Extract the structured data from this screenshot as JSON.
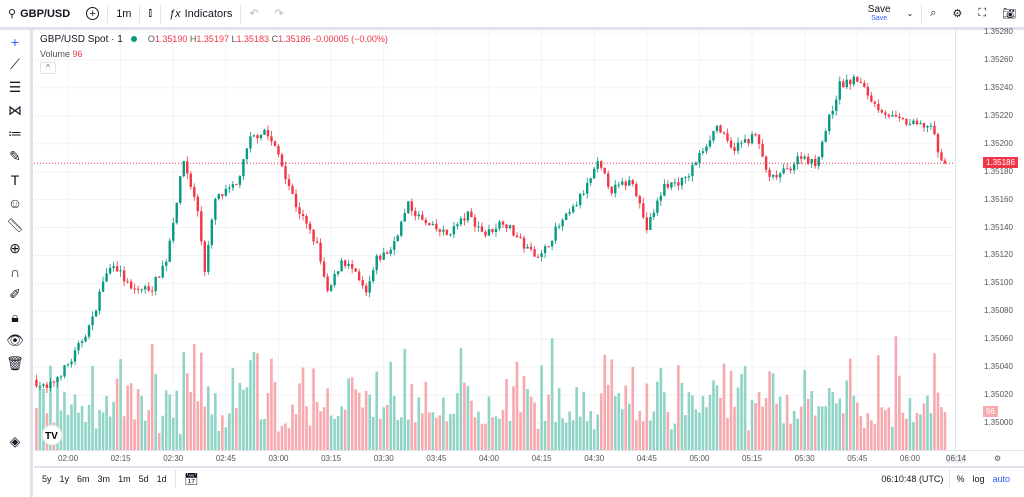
{
  "toolbar": {
    "symbol": "GBP/USD",
    "interval": "1m",
    "indicators": "Indicators",
    "save": "Save",
    "save_sub": "Save"
  },
  "legend": {
    "title": "GBP/USD Spot · 1",
    "o_label": "O",
    "o": "1.35190",
    "h_label": "H",
    "h": "1.35197",
    "l_label": "L",
    "l": "1.35183",
    "c_label": "C",
    "c": "1.35186",
    "change": "-0.00005 (−0.00%)",
    "volume_label": "Volume",
    "volume": "96"
  },
  "price_axis": {
    "labels": [
      "1.35280",
      "1.35260",
      "1.35240",
      "1.35220",
      "1.35200",
      "1.35180",
      "1.35160",
      "1.35140",
      "1.35120",
      "1.35100",
      "1.35080",
      "1.35060",
      "1.35040",
      "1.35020",
      "1.35000"
    ],
    "current_price": "1.35186",
    "current_volume": "96"
  },
  "time_axis": {
    "labels": [
      "02:00",
      "02:15",
      "02:30",
      "02:45",
      "03:00",
      "03:15",
      "03:30",
      "03:45",
      "04:00",
      "04:15",
      "04:30",
      "04:45",
      "05:00",
      "05:15",
      "05:30",
      "05:45",
      "06:00"
    ],
    "last": "06:14"
  },
  "bottom": {
    "ranges": [
      "5y",
      "1y",
      "6m",
      "3m",
      "1m",
      "5d",
      "1d"
    ],
    "clock": "06:10:48 (UTC)",
    "pct": "%",
    "log": "log",
    "auto": "auto"
  },
  "colors": {
    "up": "#089981",
    "down": "#f23645",
    "vol_up": "#8fd4c6",
    "vol_down": "#f7a9ae",
    "accent": "#2962ff"
  },
  "chart_data": {
    "type": "candlestick",
    "interval_minutes": 1,
    "time_origin": "02:00",
    "ylim": [
      1.34985,
      1.35285
    ],
    "price_path_minutes_from_origin": [
      [
        -9,
        1.35031
      ],
      [
        -5,
        1.35024
      ],
      [
        2,
        1.35045
      ],
      [
        8,
        1.35074
      ],
      [
        11,
        1.35102
      ],
      [
        14,
        1.35115
      ],
      [
        19,
        1.35095
      ],
      [
        25,
        1.35097
      ],
      [
        29,
        1.35117
      ],
      [
        34,
        1.35188
      ],
      [
        38,
        1.35152
      ],
      [
        40,
        1.3511
      ],
      [
        43,
        1.3516
      ],
      [
        49,
        1.3517
      ],
      [
        53,
        1.35203
      ],
      [
        57,
        1.3521
      ],
      [
        61,
        1.35192
      ],
      [
        66,
        1.35156
      ],
      [
        72,
        1.35127
      ],
      [
        75,
        1.35092
      ],
      [
        79,
        1.35117
      ],
      [
        82,
        1.3511
      ],
      [
        86,
        1.35092
      ],
      [
        89,
        1.35117
      ],
      [
        93,
        1.35124
      ],
      [
        98,
        1.35156
      ],
      [
        103,
        1.35142
      ],
      [
        109,
        1.35135
      ],
      [
        115,
        1.35149
      ],
      [
        120,
        1.35135
      ],
      [
        125,
        1.35145
      ],
      [
        132,
        1.35124
      ],
      [
        136,
        1.3512
      ],
      [
        140,
        1.35138
      ],
      [
        145,
        1.35153
      ],
      [
        149,
        1.3517
      ],
      [
        152,
        1.35185
      ],
      [
        156,
        1.35167
      ],
      [
        162,
        1.35174
      ],
      [
        166,
        1.35139
      ],
      [
        171,
        1.3517
      ],
      [
        177,
        1.35174
      ],
      [
        182,
        1.35196
      ],
      [
        186,
        1.35213
      ],
      [
        190,
        1.35196
      ],
      [
        197,
        1.35206
      ],
      [
        201,
        1.35174
      ],
      [
        206,
        1.35181
      ],
      [
        210,
        1.35192
      ],
      [
        214,
        1.35185
      ],
      [
        217,
        1.3521
      ],
      [
        221,
        1.35242
      ],
      [
        226,
        1.35246
      ],
      [
        231,
        1.35228
      ],
      [
        237,
        1.35217
      ],
      [
        243,
        1.35213
      ],
      [
        247,
        1.35213
      ],
      [
        250,
        1.35186
      ]
    ],
    "volume_max": 265,
    "last_volume": 96
  }
}
